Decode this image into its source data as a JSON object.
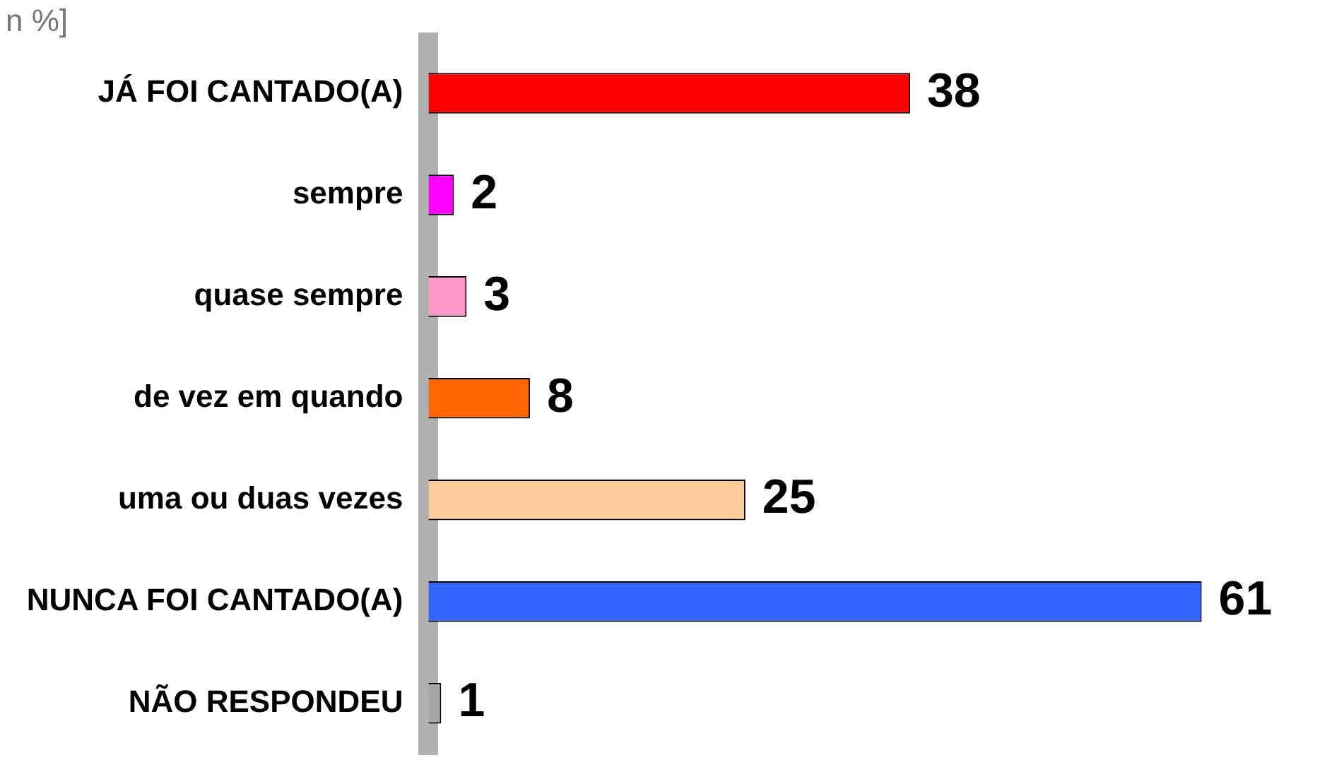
{
  "chart_data": {
    "type": "bar",
    "orientation": "horizontal",
    "annotations": [
      "n %]"
    ],
    "categories": [
      "JÁ FOI CANTADO(A)",
      "sempre",
      "quase sempre",
      "de vez em quando",
      "uma ou duas vezes",
      "NUNCA FOI CANTADO(A)",
      "NÃO RESPONDEU"
    ],
    "values": [
      38,
      2,
      3,
      8,
      25,
      61,
      1
    ],
    "colors": [
      "#ff0000",
      "#ff00ff",
      "#ff99cc",
      "#ff6600",
      "#ffcc99",
      "#3366ff",
      "#a6a6a6"
    ],
    "data_labels": true,
    "tick_labels": "y",
    "grid": false,
    "legend": false
  }
}
